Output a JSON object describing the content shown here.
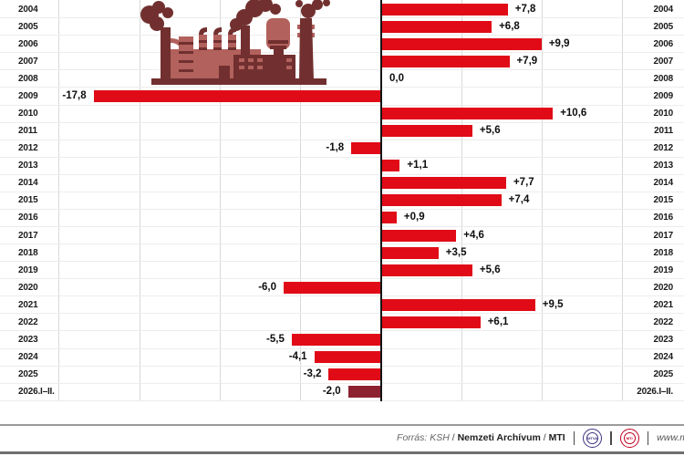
{
  "chart_data": {
    "type": "bar",
    "orientation": "horizontal",
    "categories": [
      "2004",
      "2005",
      "2006",
      "2007",
      "2008",
      "2009",
      "2010",
      "2011",
      "2012",
      "2013",
      "2014",
      "2015",
      "2016",
      "2017",
      "2018",
      "2019",
      "2020",
      "2021",
      "2022",
      "2023",
      "2024",
      "2025",
      "2026.I–II."
    ],
    "values": [
      7.8,
      6.8,
      9.9,
      7.9,
      0.0,
      -17.8,
      10.6,
      5.6,
      -1.8,
      1.1,
      7.7,
      7.4,
      0.9,
      4.6,
      3.5,
      5.6,
      -6.0,
      9.5,
      6.1,
      -5.5,
      -4.1,
      -3.2,
      -2.0
    ],
    "labels": [
      "+7,8",
      "+6,8",
      "+9,9",
      "+7,9",
      "0,0",
      "-17,8",
      "+10,6",
      "+5,6",
      "-1,8",
      "+1,1",
      "+7,7",
      "+7,4",
      "+0,9",
      "+4,6",
      "+3,5",
      "+5,6",
      "-6,0",
      "+9,5",
      "+6,1",
      "-5,5",
      "-4,1",
      "-3,2",
      "-2,0"
    ],
    "title": "",
    "xlabel": "",
    "ylabel": "",
    "axis_range": [
      -20,
      15
    ],
    "gridline_step": 5,
    "grid": true,
    "legend": false
  },
  "colors": {
    "bar": "#e00b17",
    "bar_last": "#8e2130",
    "axis": "#141414",
    "grid": "#d8d8d8",
    "row_line": "#ececec",
    "factory_dark": "#71302f",
    "factory_light": "#b2615c",
    "mtva_logo": "#3d3383",
    "mti_logo": "#c00021"
  },
  "footer": {
    "source_label": "Forrás:",
    "source_ksh": "KSH",
    "slash1": "/",
    "source_archive": "Nemzeti Archívum",
    "slash2": "/",
    "source_mti": "MTI",
    "logo_mtva": "MTVA",
    "logo_mti": "MTI",
    "website": "www.m"
  }
}
